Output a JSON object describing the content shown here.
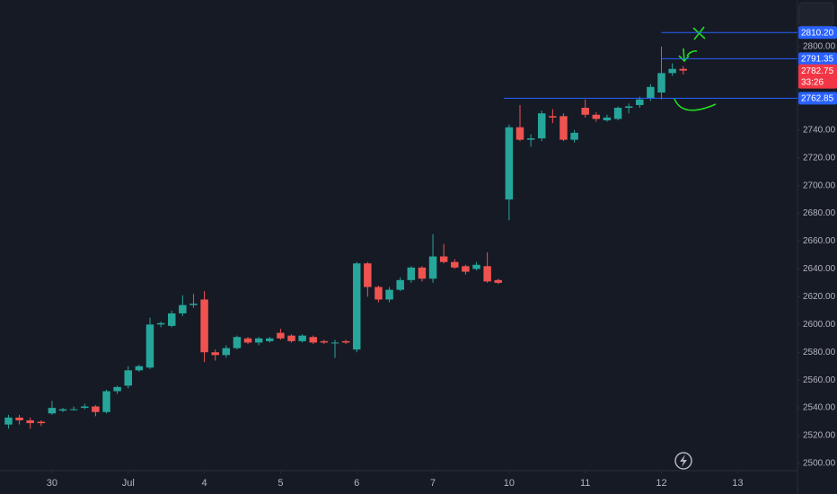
{
  "chart_data": {
    "type": "candlestick",
    "x": [
      0,
      1,
      2,
      3,
      4,
      5,
      6,
      7,
      8,
      9,
      10,
      11,
      12,
      13,
      14,
      15,
      16,
      17,
      18,
      19,
      20,
      21,
      22,
      23,
      24,
      25,
      26,
      27,
      28,
      29,
      30,
      31,
      32,
      33,
      34,
      35,
      36,
      37,
      38,
      39,
      40,
      41,
      42,
      43,
      44,
      45,
      46,
      47,
      48,
      49,
      50,
      51,
      52,
      53,
      54,
      55,
      56,
      57,
      58,
      59,
      60,
      61,
      62
    ],
    "open": [
      2528,
      2533,
      2531,
      2530,
      2536,
      2538,
      2539,
      2540,
      2541,
      2537,
      2552,
      2556,
      2567,
      2569,
      2600,
      2599,
      2608,
      2614,
      2618,
      2580,
      2578,
      2583,
      2590,
      2587,
      2588,
      2594,
      2592,
      2588,
      2591,
      2588,
      2587,
      2588,
      2582,
      2644,
      2627,
      2618,
      2625,
      2632,
      2641,
      2633,
      2649,
      2645,
      2642,
      2640,
      2642,
      2632,
      2690,
      2742,
      2733,
      2734,
      2750,
      2750,
      2733,
      2756,
      2751,
      2747,
      2748,
      2756,
      2758,
      2763,
      2767,
      2781,
      2784
    ],
    "high": [
      2535,
      2535,
      2533,
      2531,
      2545,
      2540,
      2541,
      2543,
      2542,
      2553,
      2556,
      2570,
      2571,
      2605,
      2602,
      2610,
      2621,
      2622,
      2624,
      2582,
      2585,
      2592,
      2591,
      2591,
      2591,
      2597,
      2593,
      2593,
      2592,
      2589,
      2589,
      2589,
      2645,
      2645,
      2628,
      2627,
      2634,
      2642,
      2642,
      2665,
      2658,
      2647,
      2643,
      2645,
      2652,
      2633,
      2744,
      2758,
      2737,
      2754,
      2755,
      2752,
      2740,
      2762,
      2753,
      2751,
      2757,
      2759,
      2764,
      2773,
      2800,
      2788,
      2786
    ],
    "low": [
      2525,
      2528,
      2525,
      2527,
      2535,
      2537,
      2538,
      2539,
      2534,
      2536,
      2550,
      2554,
      2566,
      2568,
      2598,
      2598,
      2606,
      2612,
      2573,
      2574,
      2576,
      2582,
      2586,
      2585,
      2587,
      2589,
      2587,
      2587,
      2586,
      2586,
      2576,
      2586,
      2580,
      2620,
      2616,
      2616,
      2624,
      2630,
      2631,
      2630,
      2644,
      2640,
      2636,
      2639,
      2630,
      2629,
      2675,
      2732,
      2728,
      2732,
      2745,
      2732,
      2731,
      2749,
      2746,
      2746,
      2747,
      2752,
      2756,
      2761,
      2762,
      2779,
      2780
    ],
    "close": [
      2533,
      2531,
      2529,
      2529,
      2540,
      2539,
      2539,
      2541,
      2537,
      2552,
      2555,
      2567,
      2570,
      2600,
      2601,
      2608,
      2614,
      2615,
      2580,
      2578,
      2583,
      2591,
      2587,
      2590,
      2590,
      2590,
      2588,
      2592,
      2587,
      2587,
      2587,
      2587,
      2644,
      2627,
      2618,
      2625,
      2632,
      2641,
      2633,
      2649,
      2645,
      2641,
      2638,
      2643,
      2631,
      2630,
      2742,
      2733,
      2734,
      2752,
      2749,
      2733,
      2738,
      2751,
      2748,
      2749,
      2756,
      2757,
      2762,
      2771,
      2781,
      2784,
      2782.75
    ],
    "up_color": "#26a69a",
    "down_color": "#ef5350",
    "xlim": [
      -0.78,
      72.5
    ],
    "xticks": [
      {
        "value": 4,
        "label": "30"
      },
      {
        "value": 11,
        "label": "Jul"
      },
      {
        "value": 18,
        "label": "4"
      },
      {
        "value": 25,
        "label": "5"
      },
      {
        "value": 32,
        "label": "6"
      },
      {
        "value": 39,
        "label": "7"
      },
      {
        "value": 46,
        "label": "10"
      },
      {
        "value": 53,
        "label": "11"
      },
      {
        "value": 60,
        "label": "12"
      },
      {
        "value": 67,
        "label": "13"
      }
    ],
    "ylim": [
      2494.8,
      2833.6
    ],
    "yticks": [
      {
        "value": 2500,
        "label": "2500.00"
      },
      {
        "value": 2520,
        "label": "2520.00"
      },
      {
        "value": 2540,
        "label": "2540.00"
      },
      {
        "value": 2560,
        "label": "2560.00"
      },
      {
        "value": 2580,
        "label": "2580.00"
      },
      {
        "value": 2600,
        "label": "2600.00"
      },
      {
        "value": 2620,
        "label": "2620.00"
      },
      {
        "value": 2640,
        "label": "2640.00"
      },
      {
        "value": 2660,
        "label": "2660.00"
      },
      {
        "value": 2680,
        "label": "2680.00"
      },
      {
        "value": 2700,
        "label": "2700.00"
      },
      {
        "value": 2720,
        "label": "2720.00"
      },
      {
        "value": 2740,
        "label": "2740.00"
      },
      {
        "value": 2800,
        "label": "2800.00"
      }
    ],
    "grid": false,
    "price_lines": [
      {
        "value": 2810.2,
        "label": "2810.20",
        "from": 60,
        "color": "#2962ff"
      },
      {
        "value": 2791.35,
        "label": "2791.35",
        "from": 60,
        "color": "#2962ff"
      },
      {
        "value": 2762.85,
        "label": "2762.85",
        "from": 45.5,
        "color": "#2962ff"
      }
    ],
    "last_price": {
      "value": 2782.75,
      "label": "2782.75",
      "countdown": "33:26",
      "color": "#f23645"
    }
  }
}
